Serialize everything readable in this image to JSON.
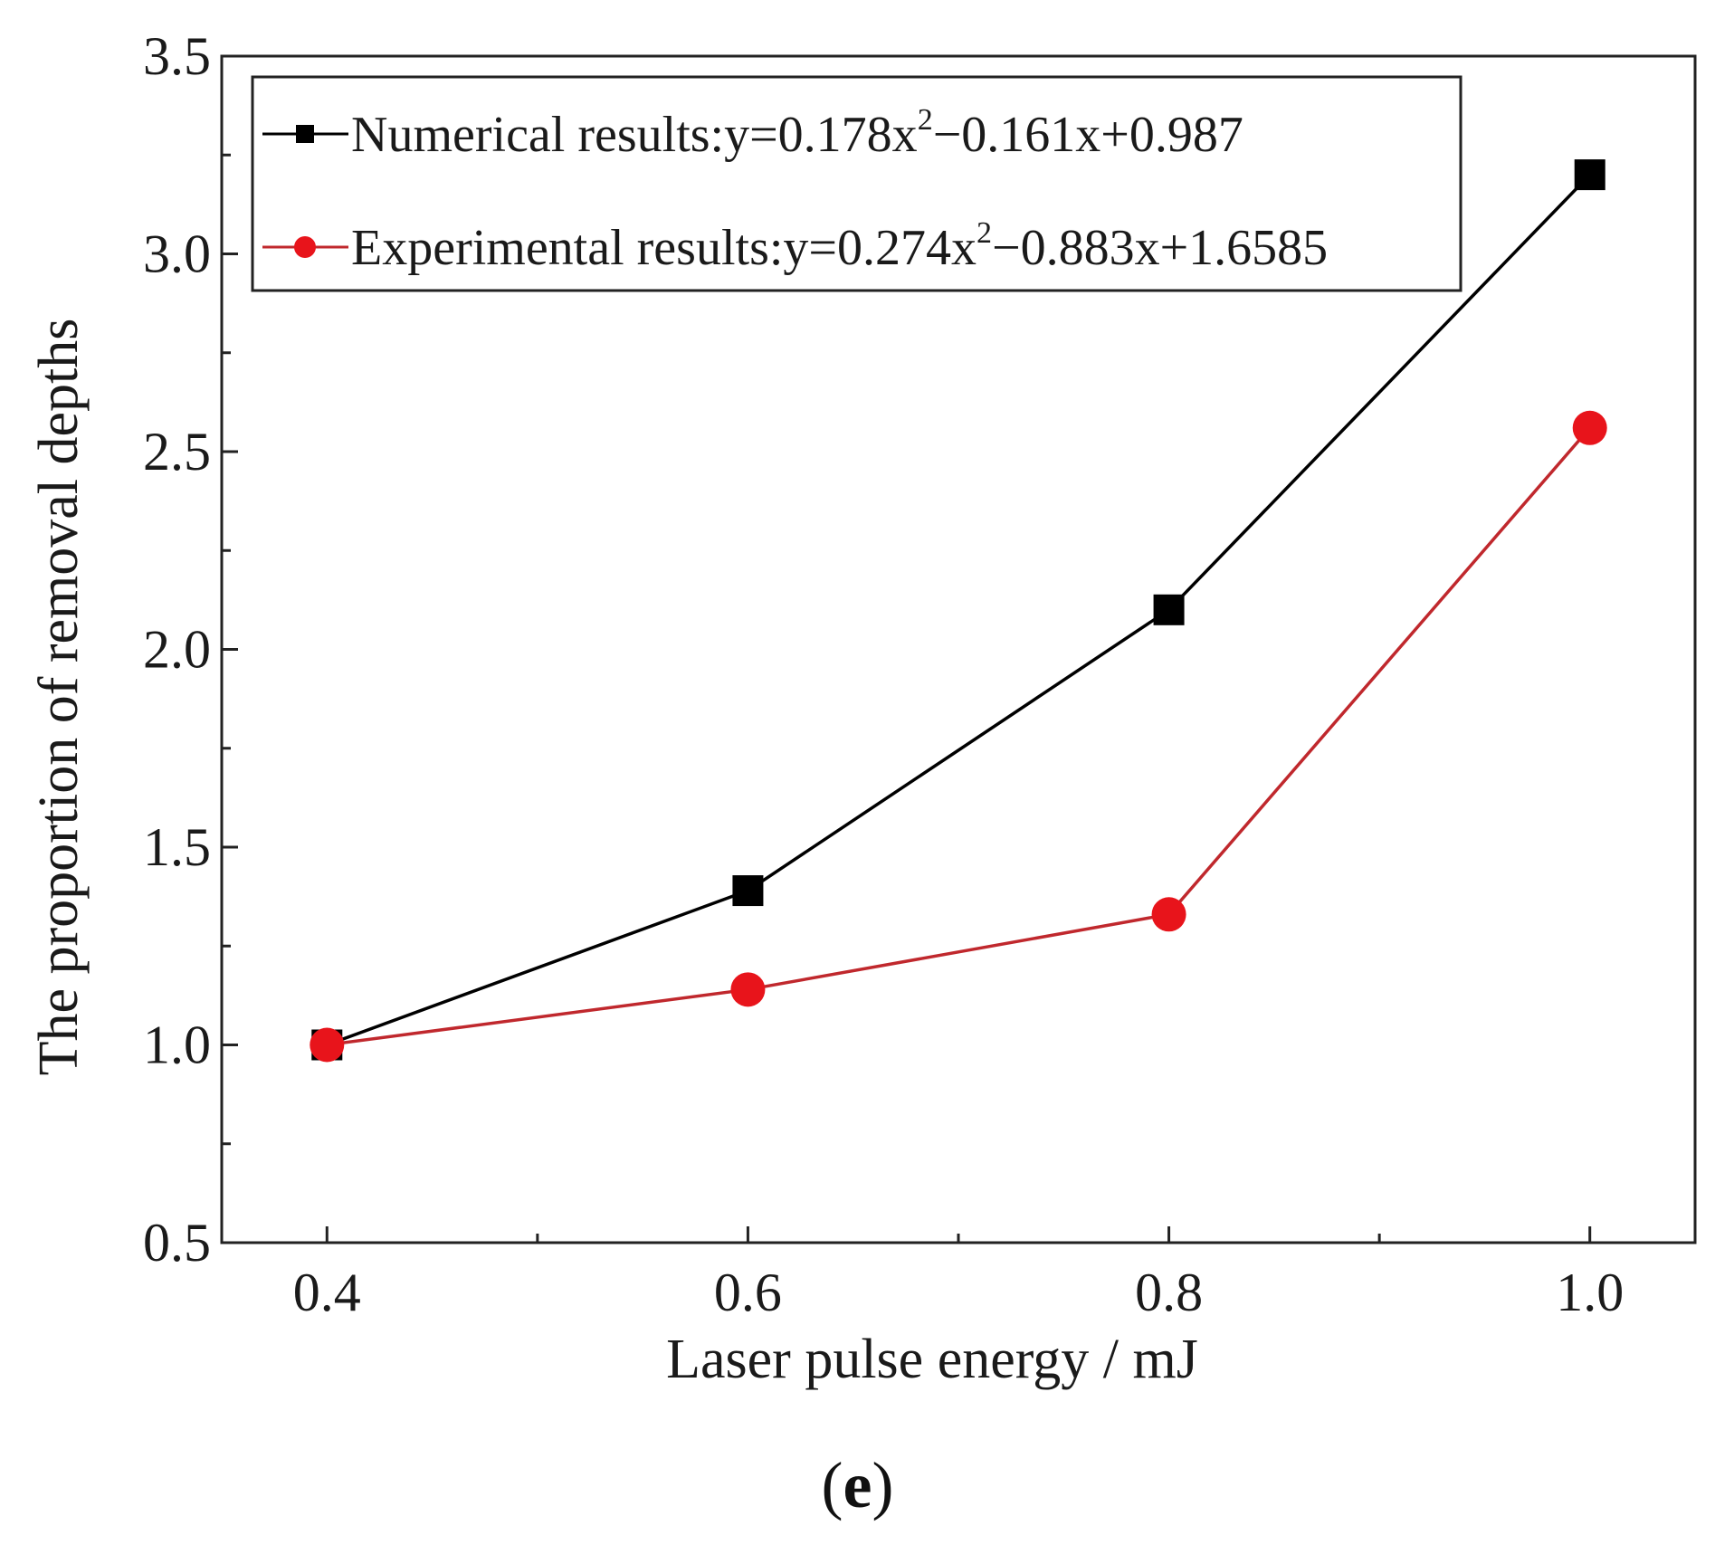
{
  "chart_data": {
    "type": "line",
    "title": "",
    "xlabel": "Laser pulse energy / mJ",
    "ylabel": "The proportion of removal depths",
    "xlim": [
      0.35,
      1.05
    ],
    "ylim": [
      0.5,
      3.5
    ],
    "x_ticks": [
      "0.4",
      "0.6",
      "0.8",
      "1.0"
    ],
    "x_tick_values": [
      0.4,
      0.6,
      0.8,
      1.0
    ],
    "x_minor_ticks": [
      0.5,
      0.7,
      0.9
    ],
    "y_ticks": [
      "0.5",
      "1.0",
      "1.5",
      "2.0",
      "2.5",
      "3.0",
      "3.5"
    ],
    "y_tick_values": [
      0.5,
      1.0,
      1.5,
      2.0,
      2.5,
      3.0,
      3.5
    ],
    "y_minor_ticks": [
      0.75,
      1.25,
      1.75,
      2.25,
      2.75,
      3.25
    ],
    "grid": false,
    "legend_position": "top-left",
    "x": [
      0.4,
      0.6,
      0.8,
      1.0
    ],
    "series": [
      {
        "name": "Numerical results",
        "legend_prefix": "Numerical results:y=0.178x",
        "legend_sup": "2",
        "legend_suffix": "−0.161x+0.987",
        "marker": "square",
        "color": "#000000",
        "values": [
          1.0,
          1.39,
          2.1,
          3.2
        ]
      },
      {
        "name": "Experimental results",
        "legend_prefix": "Experimental results:y=0.274x",
        "legend_sup": "2",
        "legend_suffix": "−0.883x+1.6585",
        "marker": "circle",
        "color": "#e8141b",
        "line_color": "#c0282d",
        "values": [
          1.0,
          1.14,
          1.33,
          2.56
        ]
      }
    ]
  },
  "panel": {
    "open": "(",
    "letter": "e",
    "close": ")"
  }
}
